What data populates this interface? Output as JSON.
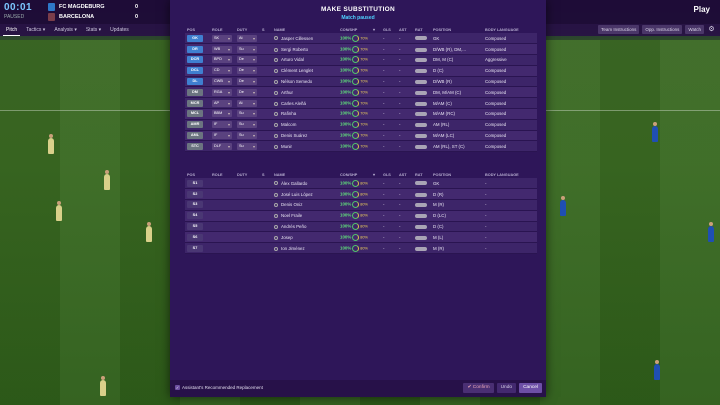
{
  "match": {
    "time": "00:01",
    "state": "PAUSED",
    "home_team": "FC MAGDEBURG",
    "home_score": "0",
    "away_team": "BARCELONA",
    "away_score": "0",
    "play_label": "Play"
  },
  "nav": {
    "tabs": [
      "Pitch",
      "Tactics ▾",
      "Analysis ▾",
      "Stats ▾",
      "Updates"
    ],
    "right_buttons": [
      "Team Instructions",
      "Opp. Instructions",
      "Watch"
    ]
  },
  "dialog": {
    "title": "MAKE SUBSTITUTION",
    "subtitle": "Match paused",
    "columns": [
      "POS",
      "ROLE",
      "DUTY",
      "S",
      "NAME",
      "CON/SHP",
      "",
      "GLS",
      "AST",
      "RAT",
      "POSITION",
      "BODY LANGUAGE"
    ],
    "starters": [
      {
        "pos": "GK",
        "pos_color": "#3f7fd0",
        "role": "SK",
        "duty": "At",
        "name": "Jasper Cillessen",
        "con": "100%",
        "sharp": "70%",
        "gls": "-",
        "ast": "-",
        "position": "GK",
        "body": "Composed"
      },
      {
        "pos": "DR",
        "pos_color": "#3f7fd0",
        "role": "WB",
        "duty": "Su",
        "name": "Sergi Roberto",
        "con": "100%",
        "sharp": "70%",
        "gls": "-",
        "ast": "-",
        "position": "D/WB (R), DM,...",
        "body": "Composed"
      },
      {
        "pos": "DCR",
        "pos_color": "#3f7fd0",
        "role": "BPD",
        "duty": "De",
        "name": "Arturo Vidal",
        "con": "100%",
        "sharp": "70%",
        "gls": "-",
        "ast": "-",
        "position": "DM, M (C)",
        "body": "Aggressive"
      },
      {
        "pos": "DCL",
        "pos_color": "#3f7fd0",
        "role": "CD",
        "duty": "De",
        "name": "Clément Lenglet",
        "con": "100%",
        "sharp": "70%",
        "gls": "-",
        "ast": "-",
        "position": "D (C)",
        "body": "Composed"
      },
      {
        "pos": "DL",
        "pos_color": "#3f7fd0",
        "role": "CWB",
        "duty": "De",
        "name": "Nélson Semedo",
        "con": "100%",
        "sharp": "70%",
        "gls": "-",
        "ast": "-",
        "position": "D/WB (R)",
        "body": "Composed"
      },
      {
        "pos": "DM",
        "pos_color": "#6b7480",
        "role": "RGA",
        "duty": "De",
        "name": "Arthur",
        "con": "100%",
        "sharp": "70%",
        "gls": "-",
        "ast": "-",
        "position": "DM, M/AM (C)",
        "body": "Composed"
      },
      {
        "pos": "MCR",
        "pos_color": "#6b7480",
        "role": "AP",
        "duty": "At",
        "name": "Carles Aleñá",
        "con": "100%",
        "sharp": "70%",
        "gls": "-",
        "ast": "-",
        "position": "M/AM (C)",
        "body": "Composed"
      },
      {
        "pos": "MCL",
        "pos_color": "#6b7480",
        "role": "BBM",
        "duty": "Su",
        "name": "Rafinha",
        "con": "100%",
        "sharp": "70%",
        "gls": "-",
        "ast": "-",
        "position": "M/AM (RC)",
        "body": "Composed"
      },
      {
        "pos": "AMR",
        "pos_color": "#6b7480",
        "role": "IF",
        "duty": "Su",
        "name": "Malcom",
        "con": "100%",
        "sharp": "70%",
        "gls": "-",
        "ast": "-",
        "position": "AM (RL)",
        "body": "Composed"
      },
      {
        "pos": "AML",
        "pos_color": "#6b7480",
        "role": "IF",
        "duty": "Su",
        "name": "Denis Suárez",
        "con": "100%",
        "sharp": "70%",
        "gls": "-",
        "ast": "-",
        "position": "M/AM (LC)",
        "body": "Composed"
      },
      {
        "pos": "STC",
        "pos_color": "#6b7480",
        "role": "DLF",
        "duty": "Su",
        "name": "Munir",
        "con": "100%",
        "sharp": "70%",
        "gls": "-",
        "ast": "-",
        "position": "AM (RL), ST (C)",
        "body": "Composed"
      }
    ],
    "subs": [
      {
        "pos": "S1",
        "name": "Àlex Gallardo",
        "con": "100%",
        "sharp": "80%",
        "gls": "-",
        "ast": "-",
        "position": "GK",
        "body": "-"
      },
      {
        "pos": "S2",
        "name": "José Luis López",
        "con": "100%",
        "sharp": "80%",
        "gls": "-",
        "ast": "-",
        "position": "D (R)",
        "body": "-"
      },
      {
        "pos": "S3",
        "name": "Denis Oniz",
        "con": "100%",
        "sharp": "80%",
        "gls": "-",
        "ast": "-",
        "position": "M (R)",
        "body": "-"
      },
      {
        "pos": "S4",
        "name": "Noel Fraile",
        "con": "100%",
        "sharp": "80%",
        "gls": "-",
        "ast": "-",
        "position": "D (LC)",
        "body": "-"
      },
      {
        "pos": "S5",
        "name": "Andrés Peño",
        "con": "100%",
        "sharp": "80%",
        "gls": "-",
        "ast": "-",
        "position": "D (C)",
        "body": "-"
      },
      {
        "pos": "S6",
        "name": "Josep",
        "con": "100%",
        "sharp": "80%",
        "gls": "-",
        "ast": "-",
        "position": "M (L)",
        "body": "-"
      },
      {
        "pos": "S7",
        "name": "Ion Jiménez",
        "con": "100%",
        "sharp": "80%",
        "gls": "-",
        "ast": "-",
        "position": "M (R)",
        "body": "-"
      }
    ],
    "recommend_label": "Assistant's Recommended Replacement",
    "confirm_label": "✔ Confirm",
    "undo_label": "Undo",
    "cancel_label": "Cancel"
  },
  "colors": {
    "accent": "#4fd2ff",
    "dialog_bg": "#2e1659",
    "condition": "#5fe07a"
  }
}
